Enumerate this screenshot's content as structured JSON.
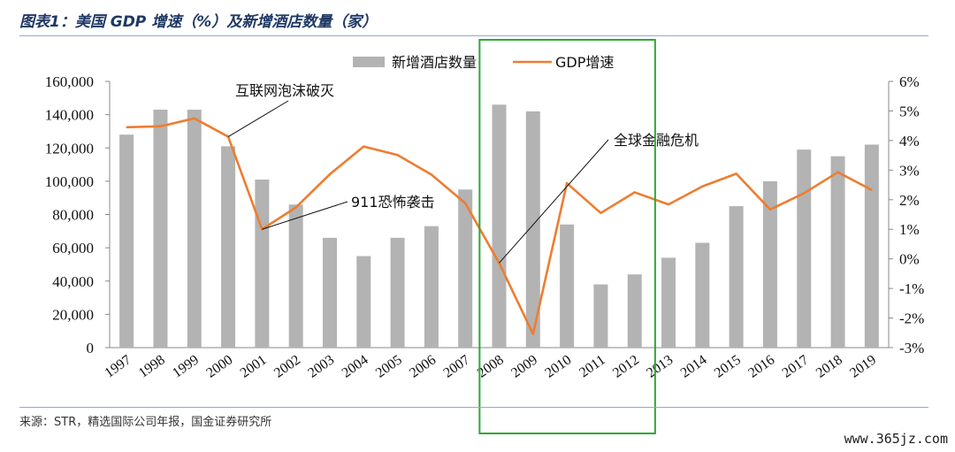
{
  "title": "图表1：美国 GDP 增速（%）及新增酒店数量（家）",
  "source": "来源：STR，精选国际公司年报，国金证券研究所",
  "watermark": "www.365jz.com",
  "colors": {
    "bar": "#b3b3b3",
    "line": "#ed7d31",
    "highlight": "#2ea836",
    "rule": "#8faadc"
  },
  "chart_data": {
    "type": "bar+line",
    "categories": [
      "1997",
      "1998",
      "1999",
      "2000",
      "2001",
      "2002",
      "2003",
      "2004",
      "2005",
      "2006",
      "2007",
      "2008",
      "2009",
      "2010",
      "2011",
      "2012",
      "2013",
      "2014",
      "2015",
      "2016",
      "2017",
      "2018",
      "2019"
    ],
    "series": [
      {
        "name": "新增酒店数量",
        "type": "bar",
        "axis": "left",
        "values": [
          128000,
          143000,
          143000,
          121000,
          101000,
          86000,
          66000,
          55000,
          66000,
          73000,
          95000,
          146000,
          142000,
          74000,
          38000,
          44000,
          54000,
          63000,
          85000,
          100000,
          119000,
          115000,
          122000
        ]
      },
      {
        "name": "GDP增速",
        "type": "line",
        "axis": "right",
        "values": [
          4.45,
          4.48,
          4.75,
          4.13,
          1.0,
          1.74,
          2.86,
          3.8,
          3.51,
          2.85,
          1.88,
          -0.14,
          -2.54,
          2.56,
          1.55,
          2.25,
          1.84,
          2.45,
          2.88,
          1.67,
          2.22,
          2.93,
          2.33
        ]
      }
    ],
    "ylim_left": [
      0,
      160000
    ],
    "yticks_left": [
      "0",
      "20,000",
      "40,000",
      "60,000",
      "80,000",
      "100,000",
      "120,000",
      "140,000",
      "160,000"
    ],
    "ylim_right": [
      -3,
      6
    ],
    "yticks_right": [
      "-3%",
      "-2%",
      "-1%",
      "0%",
      "1%",
      "2%",
      "3%",
      "4%",
      "5%",
      "6%"
    ],
    "legend_position": "top-center",
    "annotations": [
      "互联网泡沫破灭",
      "911恐怖袭击",
      "全球金融危机"
    ],
    "highlight_box": [
      "2008",
      "2012"
    ]
  }
}
